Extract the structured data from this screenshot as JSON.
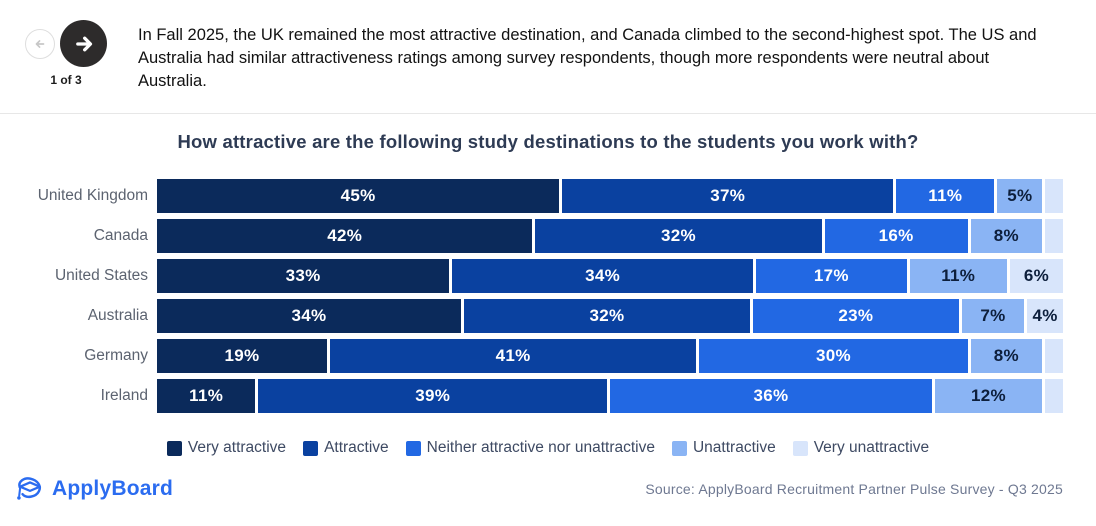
{
  "header": {
    "pagination": "1 of 3",
    "prev_label": "Previous slide",
    "next_label": "Next slide",
    "next_button_color": "#2d2b2b",
    "summary": "In Fall 2025, the UK remained the most attractive destination, and Canada climbed to the second-highest spot. The US and Australia had similar attractiveness ratings among survey respondents, though more respondents were neutral about Australia."
  },
  "chart_data": {
    "type": "bar",
    "variant": "horizontal-stacked-percent",
    "title": "How attractive are the following study destinations to the students you work with?",
    "categories": [
      "United Kingdom",
      "Canada",
      "United States",
      "Australia",
      "Germany",
      "Ireland"
    ],
    "series": [
      {
        "name": "Very attractive",
        "color": "#0b2a5b",
        "label_color": "#ffffff",
        "values": [
          45,
          42,
          33,
          34,
          19,
          11
        ]
      },
      {
        "name": "Attractive",
        "color": "#0a41a0",
        "label_color": "#ffffff",
        "values": [
          37,
          32,
          34,
          32,
          41,
          39
        ]
      },
      {
        "name": "Neither attractive nor unattractive",
        "color": "#2268e3",
        "label_color": "#ffffff",
        "values": [
          11,
          16,
          17,
          23,
          30,
          36
        ]
      },
      {
        "name": "Unattractive",
        "color": "#8ab4f4",
        "label_color": "#0d1f3c",
        "values": [
          5,
          8,
          11,
          7,
          8,
          12
        ]
      },
      {
        "name": "Very unattractive",
        "color": "#d8e5fb",
        "label_color": "#0d1f3c",
        "values": [
          2,
          2,
          6,
          4,
          2,
          2
        ]
      }
    ],
    "label_format": "{v}%",
    "min_label_value": 4,
    "xlim": [
      0,
      100
    ],
    "grid": false,
    "legend_position": "bottom"
  },
  "footer": {
    "brand": "ApplyBoard",
    "brand_color": "#2b6cf0",
    "source": "Source: ApplyBoard Recruitment Partner Pulse Survey - Q3 2025"
  }
}
